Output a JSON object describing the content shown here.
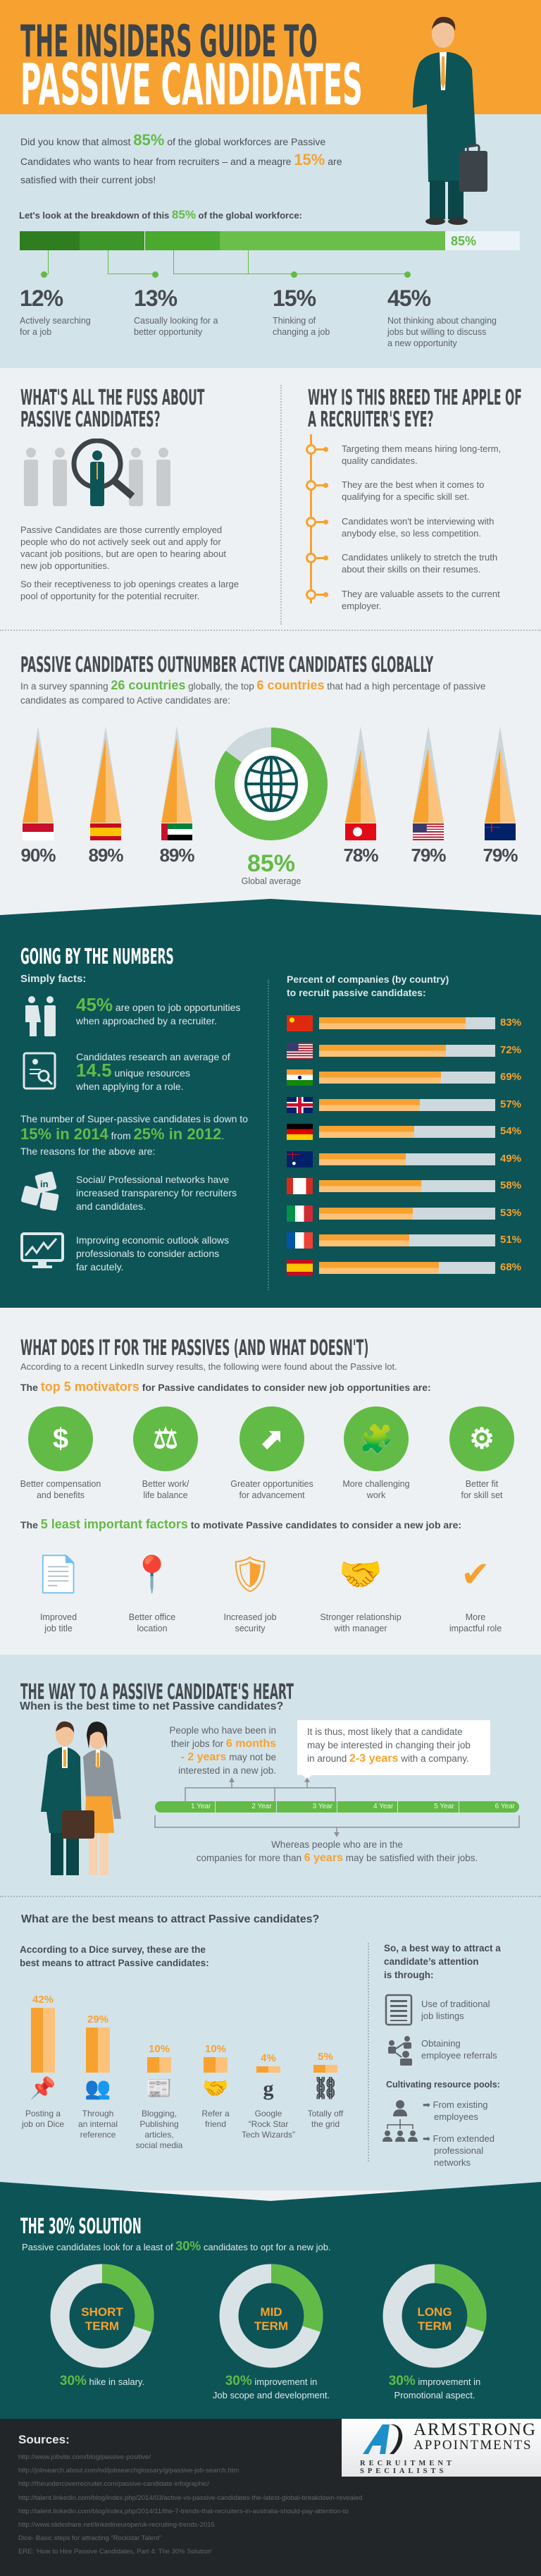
{
  "colors": {
    "orange": "#f7a230",
    "teal": "#0d5457",
    "green": "#62bb46",
    "light_blue": "#d3e3ea",
    "grey_bg": "#eef1f3",
    "dark": "#232629"
  },
  "header": {
    "title_line1": "THE INSIDERS GUIDE TO",
    "title_line2": "PASSIVE CANDIDATES",
    "illustration": "businessman-icon"
  },
  "intro": {
    "a": "Did you know that almost ",
    "b": "85%",
    "c": " of the global workforces are Passive",
    "d": "Candidates who wants to hear from recruiters – and a meagre ",
    "e": "15%",
    "f": " are",
    "g": "satisfied with their current jobs!",
    "breakdown_a": "Let's look at the breakdown of this ",
    "breakdown_b": "85%",
    "breakdown_c": " of the global workforce:",
    "bar_total": "85%",
    "bar_total_value": 85,
    "segments": [
      {
        "value": 12,
        "pct": "12%",
        "lines": [
          "Actively searching",
          "for a job"
        ]
      },
      {
        "value": 13,
        "pct": "13%",
        "lines": [
          "Casually looking for a",
          "better opportunity"
        ]
      },
      {
        "value": 15,
        "pct": "15%",
        "lines": [
          "Thinking of",
          "changing a job"
        ]
      },
      {
        "value": 45,
        "pct": "45%",
        "lines": [
          "Not thinking about changing",
          "jobs but willing to discuss",
          "a new opportunity"
        ]
      }
    ]
  },
  "fuss": {
    "title": [
      "WHAT'S ALL THE FUSS ABOUT",
      "PASSIVE CANDIDATES?"
    ],
    "icon": "magnifier-people-icon",
    "p1": [
      "Passive Candidates are those currently employed",
      "people who do not actively seek out and apply for",
      "vacant job positions, but are open to hearing about",
      "new job opportunities."
    ],
    "p2": [
      "So their receptiveness to job openings creates a large",
      "pool of opportunity for the potential recruiter."
    ]
  },
  "apple": {
    "title": [
      "WHY IS THIS BREED THE APPLE OF",
      "A RECRUITER'S EYE?"
    ],
    "items": [
      [
        "Targeting them means hiring long-term,",
        "quality candidates."
      ],
      [
        "They are the best when it comes to",
        "qualifying for a specific skill set."
      ],
      [
        "Candidates won't be interviewing with",
        "anybody else, so less competition."
      ],
      [
        "Candidates unlikely to stretch the truth",
        "about their skills on their resumes."
      ],
      [
        "They are valuable assets to the current",
        "employer."
      ]
    ]
  },
  "outnumber": {
    "title": "PASSIVE CANDIDATES OUTNUMBER ACTIVE CANDIDATES GLOBALLY",
    "a": "In a survey spanning ",
    "b": "26 countries",
    "c": " globally, the top ",
    "d": "6 countries",
    "e": " that had a high percentage of passive",
    "f": "candidates as compared to Active candidates are:",
    "countries": [
      {
        "flag": "flag-id",
        "value": 90,
        "pct": "90%"
      },
      {
        "flag": "flag-es",
        "value": 89,
        "pct": "89%"
      },
      {
        "flag": "flag-ae",
        "value": 89,
        "pct": "89%"
      },
      {
        "flag": "flag-tr",
        "value": 78,
        "pct": "78%"
      },
      {
        "flag": "flag-us",
        "value": 79,
        "pct": "79%"
      },
      {
        "flag": "flag-nz",
        "value": 79,
        "pct": "79%"
      }
    ],
    "global": {
      "value": 85,
      "pct": "85%",
      "label": "Global average",
      "icon": "globe-icon"
    }
  },
  "numbers": {
    "title": "GOING BY THE NUMBERS",
    "simply": "Simply facts:",
    "f1": {
      "big": "45%",
      "a": " are open to job opportunities",
      "b": "when approached by a recruiter.",
      "icon": "business-people-icon"
    },
    "f2": {
      "a": "Candidates research an average of",
      "big": "14.5",
      "b": " unique resources",
      "c": "when applying for a role.",
      "icon": "resume-search-icon"
    },
    "f3": {
      "a": "The number of Super-passive candidates is down to",
      "b": "15% in 2014",
      "c": " from ",
      "d": "25% in 2012",
      "e": ".",
      "f": "The reasons for the above are:"
    },
    "f4": {
      "lines": [
        "Social/ Professional networks have",
        "increased transparency for recruiters",
        "and candidates."
      ],
      "icon": "social-networks-icon"
    },
    "f5": {
      "lines": [
        "Improving economic outlook allows",
        "professionals to consider actions",
        "far acutely."
      ],
      "icon": "growth-chart-icon"
    },
    "chart_title": [
      "Percent of companies (by country)",
      "to recruit passive candidates:"
    ],
    "bars": [
      {
        "flag": "flag-cn",
        "value": 83,
        "pct": "83%"
      },
      {
        "flag": "flag-us",
        "value": 72,
        "pct": "72%"
      },
      {
        "flag": "flag-in",
        "value": 69,
        "pct": "69%"
      },
      {
        "flag": "flag-gb",
        "value": 57,
        "pct": "57%"
      },
      {
        "flag": "flag-de",
        "value": 54,
        "pct": "54%"
      },
      {
        "flag": "flag-au",
        "value": 49,
        "pct": "49%"
      },
      {
        "flag": "flag-ca",
        "value": 58,
        "pct": "58%"
      },
      {
        "flag": "flag-it",
        "value": 53,
        "pct": "53%"
      },
      {
        "flag": "flag-fr",
        "value": 51,
        "pct": "51%"
      },
      {
        "flag": "flag-es",
        "value": 68,
        "pct": "68%"
      }
    ]
  },
  "whatdoes": {
    "title": "WHAT DOES IT FOR THE PASSIVES (AND WHAT DOESN'T)",
    "intro": "According to a recent LinkedIn survey results, the following were found about the Passive lot.",
    "top_a": "The ",
    "top_b": "top 5 motivators",
    "top_c": " for Passive candidates to consider new job opportunities are:",
    "motivators": [
      {
        "icon": "money-icon",
        "lines": [
          "Better compensation",
          "and benefits"
        ]
      },
      {
        "icon": "balance-icon",
        "lines": [
          "Better work/",
          "life balance"
        ]
      },
      {
        "icon": "stairs-icon",
        "lines": [
          "Greater opportunities",
          "for advancement"
        ]
      },
      {
        "icon": "puzzle-icon",
        "lines": [
          "More challenging",
          "work"
        ]
      },
      {
        "icon": "gears-icon",
        "lines": [
          "Better fit",
          "for skill set"
        ]
      }
    ],
    "least_a": "The ",
    "least_b": "5 least important factors",
    "least_c": " to motivate Passive candidates to consider a new job are:",
    "factors": [
      {
        "icon": "document-icon",
        "lines": [
          "Improved",
          "job title"
        ]
      },
      {
        "icon": "location-building-icon",
        "lines": [
          "Better office",
          "location"
        ]
      },
      {
        "icon": "shield-icon",
        "lines": [
          "Increased job",
          "security"
        ]
      },
      {
        "icon": "handshake-icon",
        "lines": [
          "Stronger relationship",
          "with manager"
        ]
      },
      {
        "icon": "person-check-icon",
        "lines": [
          "More",
          "impactful role"
        ]
      }
    ]
  },
  "heart": {
    "title": "THE WAY TO A PASSIVE CANDIDATE'S HEART",
    "question": "When is the best time to net Passive candidates?",
    "illustration": "couple-icon",
    "left_a": "People who have been in",
    "left_b": "their jobs for ",
    "left_c": "6 months",
    "left_d": "- 2 years",
    "left_e": " may not be",
    "left_f": "interested in a new job.",
    "box_a": "It is thus, most likely that a candidate",
    "box_b": "may be interested in changing their job",
    "box_c": "in around ",
    "box_d": "2-3 years",
    "box_e": " with a company.",
    "years": [
      "1 Year",
      "2 Year",
      "3 Year",
      "4 Year",
      "5 Year",
      "6 Year"
    ],
    "bottom_a": "Whereas people who are in the",
    "bottom_b": "companies for more than ",
    "bottom_c": "6 years",
    "bottom_d": " may be satisfied with their jobs."
  },
  "means": {
    "question": "What are the best means to attract Passive candidates?",
    "intro": [
      "According to a Dice survey, these are the",
      "best means to attract Passive candidates:"
    ],
    "bars": [
      {
        "value": 42,
        "pct": "42%",
        "icon": "posting-icon",
        "lines": [
          "Posting a",
          "job on Dice"
        ]
      },
      {
        "value": 29,
        "pct": "29%",
        "icon": "meeting-icon",
        "lines": [
          "Through",
          "an internal",
          "reference"
        ]
      },
      {
        "value": 10,
        "pct": "10%",
        "icon": "blog-icon",
        "lines": [
          "Blogging,",
          "Publishing",
          "articles,",
          "social media"
        ]
      },
      {
        "value": 10,
        "pct": "10%",
        "icon": "friends-icon",
        "lines": [
          "Refer a",
          "friend"
        ]
      },
      {
        "value": 4,
        "pct": "4%",
        "icon": "google-icon",
        "lines": [
          "Google",
          "“Rock Star",
          "Tech Wizards”"
        ]
      },
      {
        "value": 5,
        "pct": "5%",
        "icon": "network-icon",
        "lines": [
          "Totally off",
          "the grid"
        ]
      }
    ],
    "best_way": [
      "So, a best way to attract a",
      "candidate’s attention",
      "is through:"
    ],
    "ways": [
      {
        "icon": "list-icon",
        "lines": [
          "Use of traditional",
          "job listings"
        ]
      },
      {
        "icon": "referral-icon",
        "lines": [
          "Obtaining",
          "employee referrals"
        ]
      }
    ],
    "pools_title": "Cultivating resource pools:",
    "pools_icon": "org-chart-icon",
    "pools": [
      [
        "From existing",
        "employees"
      ],
      [
        "From extended",
        "professional",
        "networks"
      ]
    ]
  },
  "solution": {
    "title": "THE 30% SOLUTION",
    "a": "Passive candidates look for a least of ",
    "b": "30%",
    "c": " candidates to opt for a new job.",
    "items": [
      {
        "value": 30,
        "t1": "SHORT",
        "t2": "TERM",
        "big": "30%",
        "lines": [
          " hike in salary."
        ]
      },
      {
        "value": 30,
        "t1": "MID",
        "t2": "TERM",
        "big": "30%",
        "lines": [
          " improvement in",
          "Job scope and development."
        ]
      },
      {
        "value": 30,
        "t1": "LONG",
        "t2": "TERM",
        "big": "30%",
        "lines": [
          " improvement in",
          "Promotional aspect."
        ]
      }
    ]
  },
  "footer": {
    "sources_title": "Sources:",
    "sources": [
      "http://www.jobvite.com/blog/passive-positive/",
      "http://jobsearch.about.com/od/jobsearchglossary/g/passive-job-search.htm",
      "http://theundercoverrecruiter.com/passive-candidate-infographic/",
      "http://talent.linkedin.com/blog/index.php/2014/03/active-vs-passive-candidates-the-latest-global-breakdown-revealed",
      "http://talent.linkedin.com/blog/index.php/2014/11/the-7-trends-that-recruiters-in-australia-should-pay-attention-to",
      "http://www.slideshare.net/linkedineurope/uk-recruiting-trends-2015",
      "Dice- Basic steps for attracting “Rockstar Talent”",
      "ERE: 'How to Hire Passive Candidates, Part 4: The 30% Solution'"
    ],
    "logo": {
      "line1": "ARMSTRONG",
      "line2": "APPOINTMENTS",
      "line3": "RECRUITMENT SPECIALISTS"
    }
  }
}
